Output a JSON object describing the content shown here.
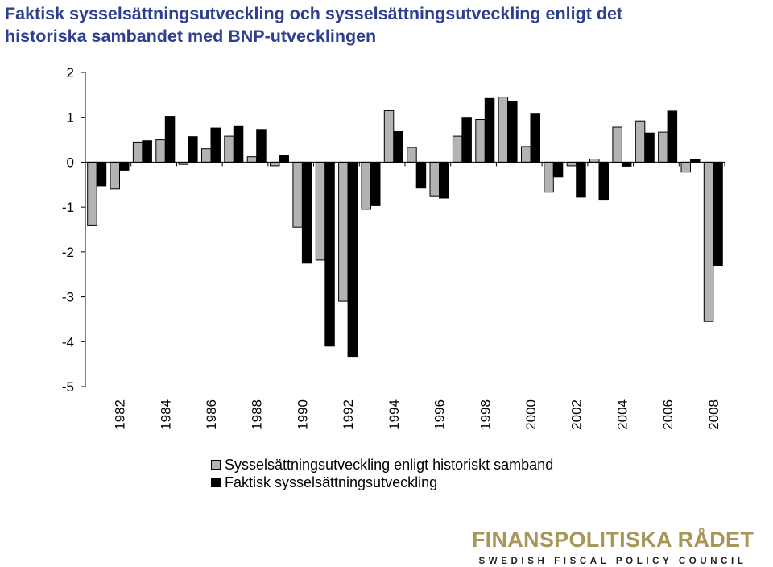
{
  "title_lines": [
    "Faktisk sysselsättningsutveckling och sysselsättningsutveckling enligt det",
    "historiska sambandet med BNP-utvecklingen"
  ],
  "colors": {
    "title": "#2e3f8f",
    "historic": "#b3b3b3",
    "actual": "#000000",
    "logo": "#a89659"
  },
  "chart_data": {
    "type": "bar",
    "title": "Faktisk sysselsättningsutveckling och sysselsättningsutveckling enligt det historiska sambandet med BNP-utvecklingen",
    "xlabel": "",
    "ylabel": "",
    "ylim": [
      -5,
      2
    ],
    "yticks": [
      "2",
      "1",
      "0",
      "-1",
      "-2",
      "-3",
      "-4",
      "-5"
    ],
    "xtick_labels": [
      "1982",
      "1984",
      "1986",
      "1988",
      "1990",
      "1992",
      "1994",
      "1996",
      "1998",
      "2000",
      "2002",
      "2004",
      "2006",
      "2008"
    ],
    "categories": [
      "1981",
      "1982",
      "1983",
      "1984",
      "1985",
      "1986",
      "1987",
      "1988",
      "1989",
      "1990",
      "1991",
      "1992",
      "1993",
      "1994",
      "1995",
      "1996",
      "1997",
      "1998",
      "1999",
      "2000",
      "2001",
      "2002",
      "2003",
      "2004",
      "2005",
      "2006",
      "2007",
      "2008"
    ],
    "grid": false,
    "legend_position": "bottom",
    "series": [
      {
        "name": "Sysselsättningsutveckling enligt historiskt samband",
        "color": "#b3b3b3",
        "values": [
          -1.4,
          -0.6,
          0.45,
          0.5,
          -0.05,
          0.3,
          0.58,
          0.12,
          -0.08,
          -1.45,
          -2.18,
          -3.1,
          -1.05,
          1.15,
          0.33,
          -0.75,
          0.58,
          0.95,
          1.45,
          0.35,
          -0.67,
          -0.08,
          0.07,
          0.78,
          0.92,
          0.67,
          -0.22,
          -3.55
        ]
      },
      {
        "name": "Faktisk sysselsättningsutveckling",
        "color": "#000000",
        "values": [
          -0.53,
          -0.18,
          0.48,
          1.02,
          0.57,
          0.76,
          0.81,
          0.73,
          0.16,
          -2.25,
          -4.1,
          -4.33,
          -0.97,
          0.68,
          -0.58,
          -0.8,
          1.0,
          1.42,
          1.36,
          1.09,
          -0.33,
          -0.78,
          -0.83,
          -0.09,
          0.65,
          1.14,
          0.06,
          -2.3
        ]
      }
    ]
  },
  "legend": {
    "items": [
      "Sysselsättningsutveckling enligt historiskt samband",
      "Faktisk sysselsättningsutveckling"
    ]
  },
  "logo": {
    "main": "FINANSPOLITISKA RÅDET",
    "sub": "SWEDISH FISCAL POLICY COUNCIL"
  }
}
